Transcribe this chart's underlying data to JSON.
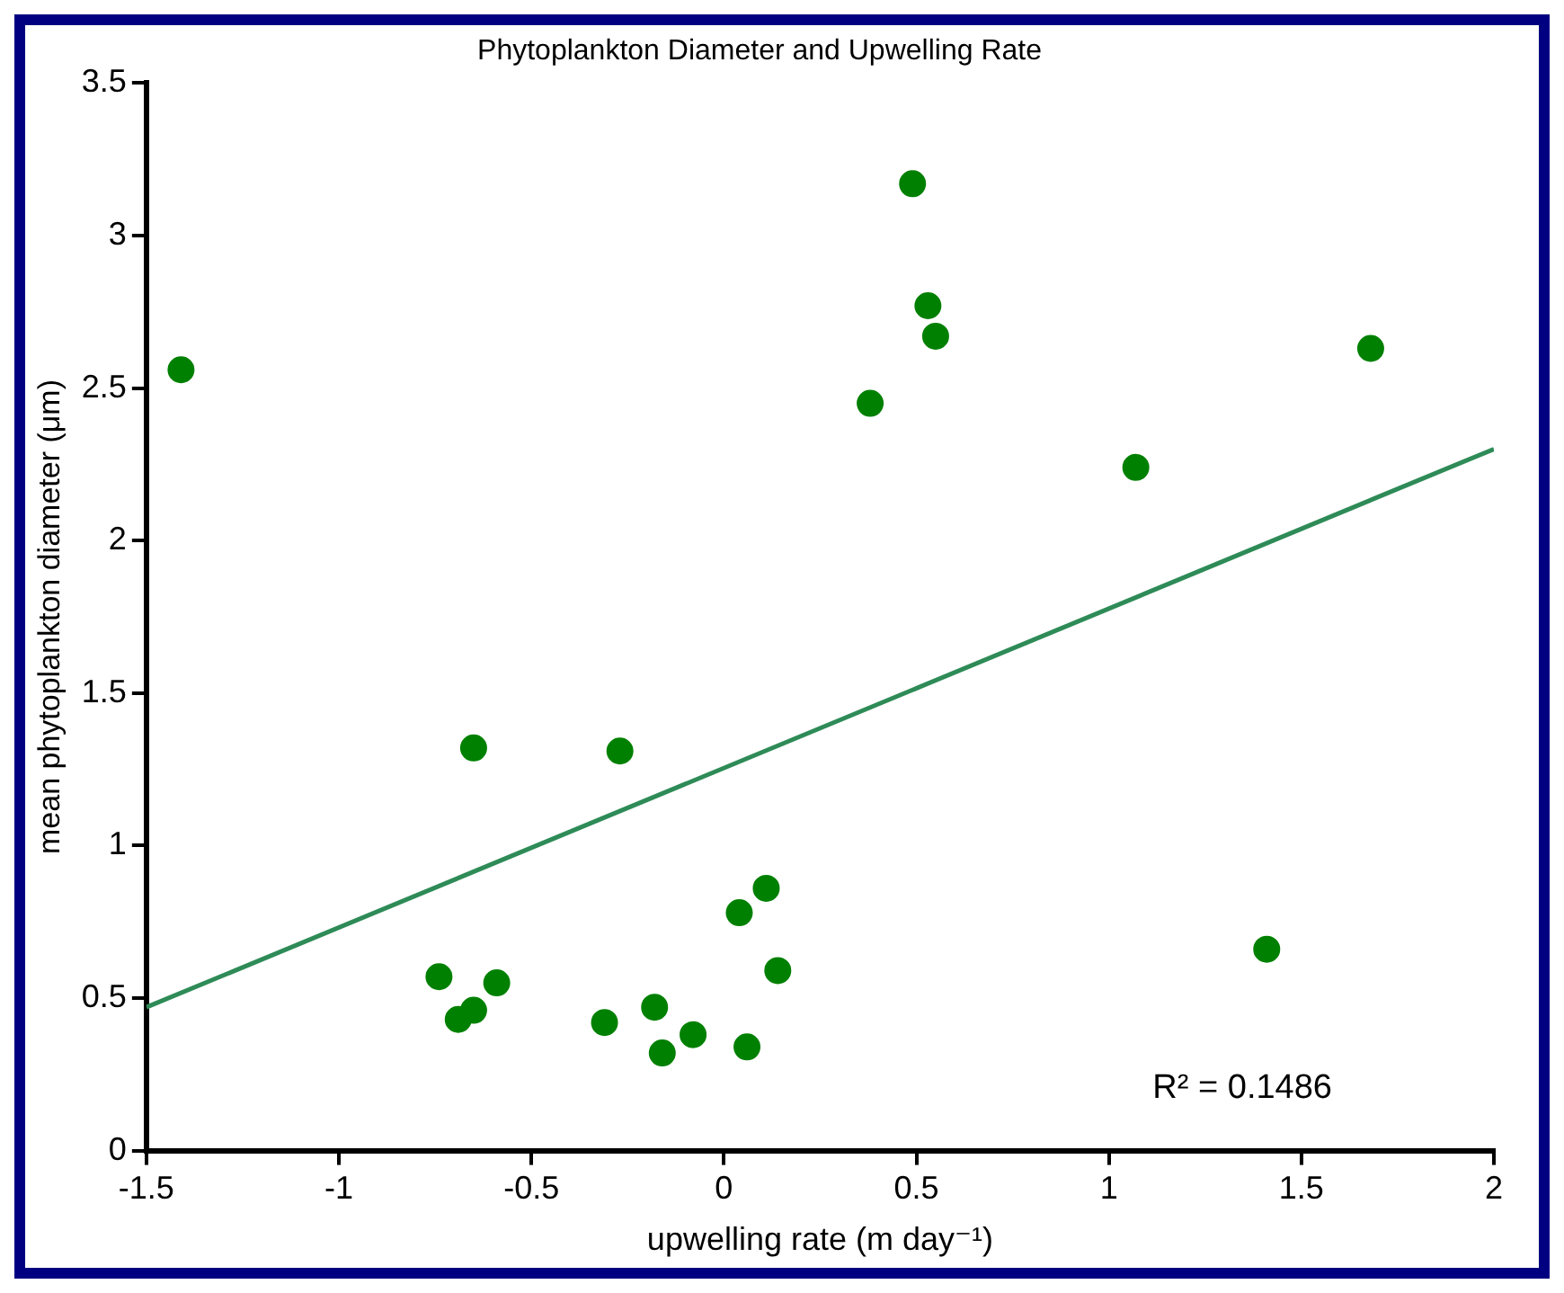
{
  "chart_data": {
    "type": "scatter",
    "title": "Phytoplankton Diameter and Upwelling Rate",
    "xlabel": "upwelling rate (m day⁻¹)",
    "ylabel": "mean phytoplankton diameter (μm)",
    "series": [
      {
        "color": "#008000",
        "marker": "circle",
        "x": [
          -1.41,
          -0.65,
          -0.27,
          -0.74,
          -0.69,
          -0.65,
          -0.59,
          -0.31,
          -0.18,
          -0.16,
          -0.08,
          0.04,
          0.11,
          0.14,
          0.06,
          0.49,
          0.53,
          0.55,
          0.38,
          1.68,
          1.07,
          1.41
        ],
        "values": [
          2.56,
          1.32,
          1.31,
          0.57,
          0.43,
          0.46,
          0.55,
          0.42,
          0.47,
          0.32,
          0.38,
          0.78,
          0.86,
          0.59,
          0.34,
          3.17,
          2.77,
          2.67,
          2.45,
          2.63,
          2.24,
          0.66
        ]
      },
      {
        "type": "line",
        "color": "#2e8b57",
        "x": [
          -1.5,
          2
        ],
        "values": [
          0.47,
          2.3
        ]
      }
    ],
    "annotations": [
      "R² = 0.1486"
    ],
    "xlim": [
      -1.5,
      2
    ],
    "xticks": [
      -1.5,
      -1,
      -0.5,
      0,
      0.5,
      1,
      1.5,
      2
    ],
    "ylim": [
      0,
      3.5
    ],
    "yticks": [
      0,
      0.5,
      1,
      1.5,
      2,
      2.5,
      3,
      3.5
    ],
    "grid": false,
    "legend": false
  }
}
